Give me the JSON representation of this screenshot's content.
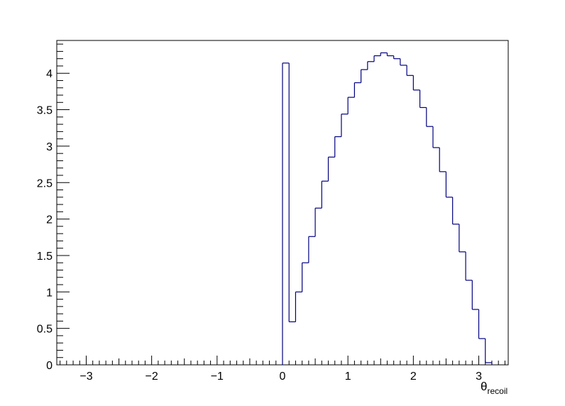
{
  "chart_data": {
    "type": "bar",
    "histogram": true,
    "title": "",
    "xlabel_main": "θ",
    "xlabel_sub": "recoil",
    "ylabel": "",
    "xlim": [
      -3.45,
      3.45
    ],
    "ylim": [
      0,
      4.45
    ],
    "grid": false,
    "legend": "none",
    "line_color": "#000080",
    "x_ticks": [
      {
        "value": -3,
        "label": "−3"
      },
      {
        "value": -2,
        "label": "−2"
      },
      {
        "value": -1,
        "label": "−1"
      },
      {
        "value": 0,
        "label": "0"
      },
      {
        "value": 1,
        "label": "1"
      },
      {
        "value": 2,
        "label": "2"
      },
      {
        "value": 3,
        "label": "3"
      }
    ],
    "y_ticks": [
      {
        "value": 0,
        "label": "0"
      },
      {
        "value": 0.5,
        "label": "0.5"
      },
      {
        "value": 1,
        "label": "1"
      },
      {
        "value": 1.5,
        "label": "1.5"
      },
      {
        "value": 2,
        "label": "2"
      },
      {
        "value": 2.5,
        "label": "2.5"
      },
      {
        "value": 3,
        "label": "3"
      },
      {
        "value": 3.5,
        "label": "3.5"
      },
      {
        "value": 4,
        "label": "4"
      }
    ],
    "bin_start": 0,
    "bin_width": 0.1,
    "values": [
      4.14,
      0.59,
      1.0,
      1.4,
      1.76,
      2.15,
      2.52,
      2.85,
      3.13,
      3.44,
      3.67,
      3.87,
      4.05,
      4.16,
      4.24,
      4.28,
      4.24,
      4.2,
      4.11,
      3.97,
      3.77,
      3.53,
      3.27,
      2.98,
      2.65,
      2.3,
      1.93,
      1.55,
      1.16,
      0.76,
      0.36,
      0.03
    ]
  }
}
